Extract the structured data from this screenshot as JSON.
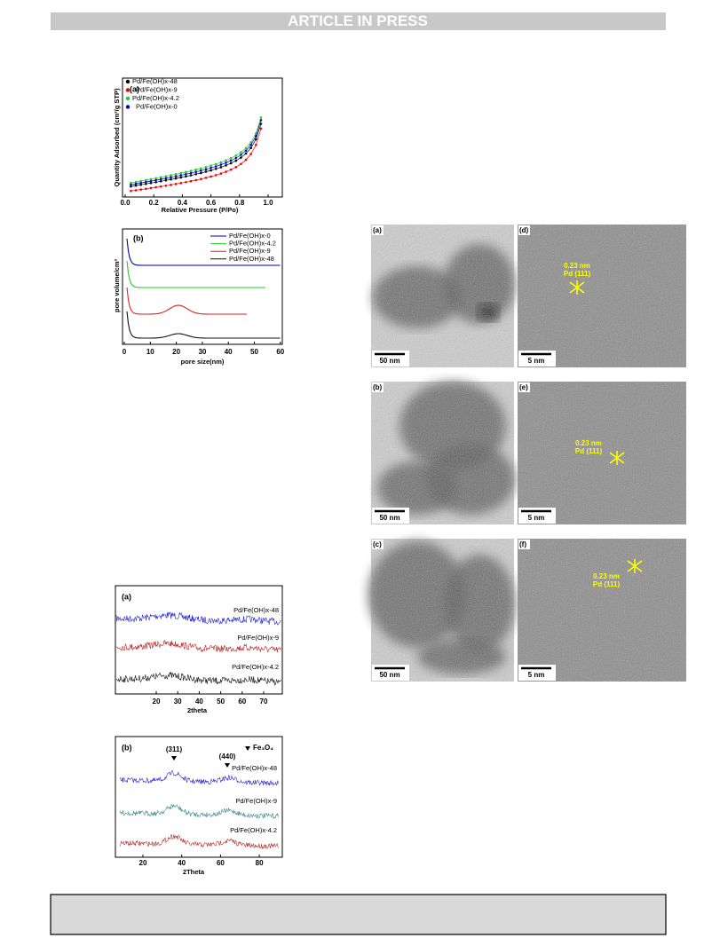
{
  "header": {
    "title": "ARTICLE IN PRESS"
  },
  "figures": [
    {
      "panel": "(a)",
      "legend": [
        "Pd/Fe(OH)x-48",
        "Pd/Fe(OH)x-9",
        "Pd/Fe(OH)x-4.2",
        "Pd/Fe(OH)x-0"
      ],
      "y_label": "Quantity Adsorbed (cm³/g STP)",
      "x_label": "Relative Pressure (P/Po)",
      "x_ticks": [
        "0.0",
        "0.2",
        "0.4",
        "0.6",
        "0.8",
        "1.0"
      ]
    },
    {
      "panel": "(b)",
      "legend": [
        "Pd/Fe(OH)x-0",
        "Pd/Fe(OH)x-4.2",
        "Pd/Fe(OH)x-9",
        "Pd/Fe(OH)x-48"
      ],
      "y_label": "pore volume/cm³",
      "x_label": "pore size(nm)",
      "x_ticks": [
        "0",
        "10",
        "20",
        "30",
        "40",
        "50",
        "60"
      ]
    },
    {
      "panel": "(a)",
      "curve_labels": [
        "Pd/Fe(OH)x-48",
        "Pd/Fe(OH)x-9",
        "Pd/Fe(OH)x-4.2"
      ],
      "x_label": "2theta",
      "x_ticks": [
        "20",
        "30",
        "40",
        "50",
        "60",
        "70"
      ]
    },
    {
      "panel": "(b)",
      "curve_labels": [
        "Pd/Fe(OH)x-48",
        "Pd/Fe(OH)x-9",
        "Pd/Fe(OH)x-4.2"
      ],
      "x_label": "2Theta",
      "x_ticks": [
        "20",
        "40",
        "60",
        "80"
      ],
      "peaks": [
        "(311)",
        "(440)"
      ],
      "marker_legend": "Fe₃O₄"
    }
  ],
  "tem": {
    "panels": [
      {
        "label": "(a)",
        "scale": "50 nm"
      },
      {
        "label": "(d)",
        "scale": "5 nm",
        "spacing": "0.23 nm",
        "plane": "Pd (111)"
      },
      {
        "label": "(b)",
        "scale": "50 nm"
      },
      {
        "label": "(e)",
        "scale": "5 nm",
        "spacing": "0.23 nm",
        "plane": "Pd (111)"
      },
      {
        "label": "(c)",
        "scale": "50 nm"
      },
      {
        "label": "(f)",
        "scale": "5 nm",
        "spacing": "0.23 nm",
        "plane": "Pd (111)"
      }
    ]
  }
}
